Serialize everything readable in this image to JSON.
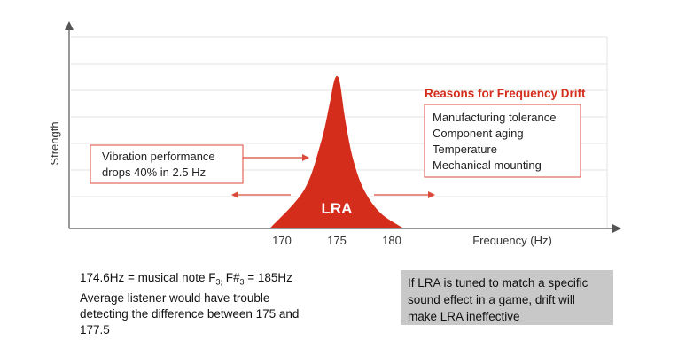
{
  "chart_data": {
    "type": "area",
    "title": "",
    "xlabel": "Frequency (Hz)",
    "ylabel": "Strength",
    "x_ticks": [
      "170",
      "175",
      "180"
    ],
    "series": [
      {
        "name": "LRA",
        "x": [
          168.9,
          172.0,
          173.5,
          174.3,
          174.7,
          175.0,
          175.3,
          175.8,
          176.5,
          177.5,
          179.0,
          181.1
        ],
        "y": [
          0.0,
          0.25,
          0.55,
          0.8,
          0.95,
          1.0,
          0.95,
          0.7,
          0.45,
          0.25,
          0.1,
          0.0
        ]
      }
    ],
    "grid": true,
    "colors": {
      "curve": "#d42d1c",
      "arrow": "#d94a3a",
      "axis": "#555555",
      "grid": "#e3e3e3"
    }
  },
  "annotations": {
    "vibration": [
      "Vibration performance",
      "drops 40% in 2.5 Hz"
    ],
    "reasons_title": "Reasons for Frequency Drift",
    "reasons": [
      "Manufacturing tolerance",
      "Component aging",
      "Temperature",
      "Mechanical mounting"
    ]
  },
  "notes": {
    "line1_prefix": "174.6Hz = musical note F",
    "line1_sub1": "3;",
    "line1_mid": " F#",
    "line1_sub2": "3",
    "line1_suffix": " = 185Hz",
    "line2": "Average listener would have trouble",
    "line3": "detecting the difference between 175 and",
    "line4": "177.5"
  },
  "callout": {
    "lines": [
      "If LRA is tuned to match a specific",
      "sound effect in a game, drift will",
      "make LRA ineffective"
    ]
  }
}
